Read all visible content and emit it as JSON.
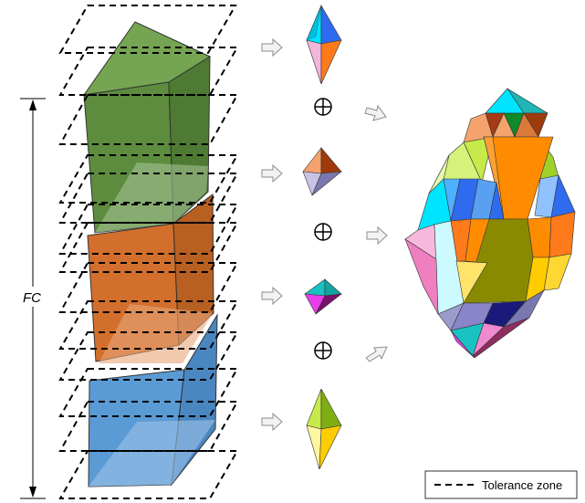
{
  "dimension": {
    "label": "FC"
  },
  "legend": {
    "label": "Tolerance zone"
  },
  "operators": [
    "⊕",
    "⊕",
    "⊕"
  ],
  "colors": {
    "green_block": "#5d8c3e",
    "orange_block": "#d36f2c",
    "blue_block": "#5b9bd5",
    "dash": "#000000",
    "arrow_fill": "#f2f2f2",
    "arrow_stroke": "#8c8c8c"
  },
  "icons": [
    "minkowski-sum-icon",
    "right-arrow-icon"
  ]
}
